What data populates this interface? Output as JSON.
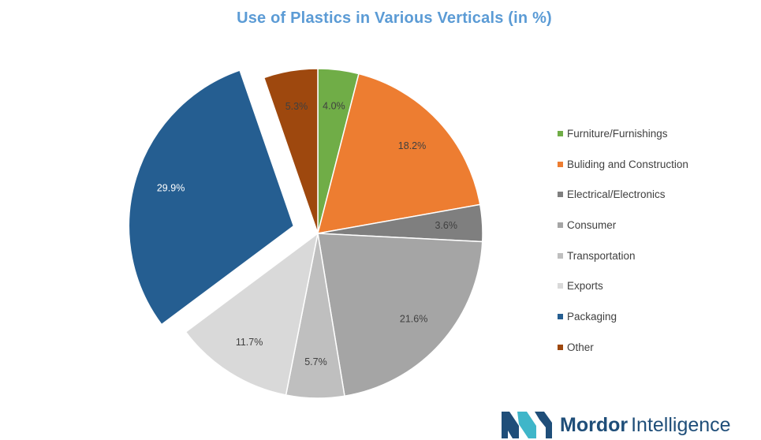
{
  "chart_data": {
    "type": "pie",
    "title": "Use of Plastics in Various Verticals (in %)",
    "slices": [
      {
        "name": "Furniture/Furnishings",
        "value": 4.0,
        "label": "4.0%",
        "color": "#70ad47",
        "exploded": false,
        "label_light": false
      },
      {
        "name": "Buliding and Construction",
        "value": 18.2,
        "label": "18.2%",
        "color": "#ed7d31",
        "exploded": false,
        "label_light": false
      },
      {
        "name": "Electrical/Electronics",
        "value": 3.6,
        "label": "3.6%",
        "color": "#7f7f7f",
        "exploded": false,
        "label_light": false
      },
      {
        "name": "Consumer",
        "value": 21.6,
        "label": "21.6%",
        "color": "#a5a5a5",
        "exploded": false,
        "label_light": false
      },
      {
        "name": "Transportation",
        "value": 5.7,
        "label": "5.7%",
        "color": "#bfbfbf",
        "exploded": false,
        "label_light": false
      },
      {
        "name": "Exports",
        "value": 11.7,
        "label": "11.7%",
        "color": "#d9d9d9",
        "exploded": false,
        "label_light": false
      },
      {
        "name": "Packaging",
        "value": 29.9,
        "label": "29.9%",
        "color": "#255e91",
        "exploded": true,
        "label_light": true
      },
      {
        "name": "Other",
        "value": 5.3,
        "label": "5.3%",
        "color": "#9e480e",
        "exploded": false,
        "label_light": false
      }
    ],
    "start_angle_deg": 0,
    "direction": "clockwise",
    "legend_position": "right"
  },
  "brand": {
    "name_part1": "Mordor",
    "name_part2": "Intelligence",
    "logo_colors": [
      "#1f4e79",
      "#3fb6c9"
    ]
  }
}
